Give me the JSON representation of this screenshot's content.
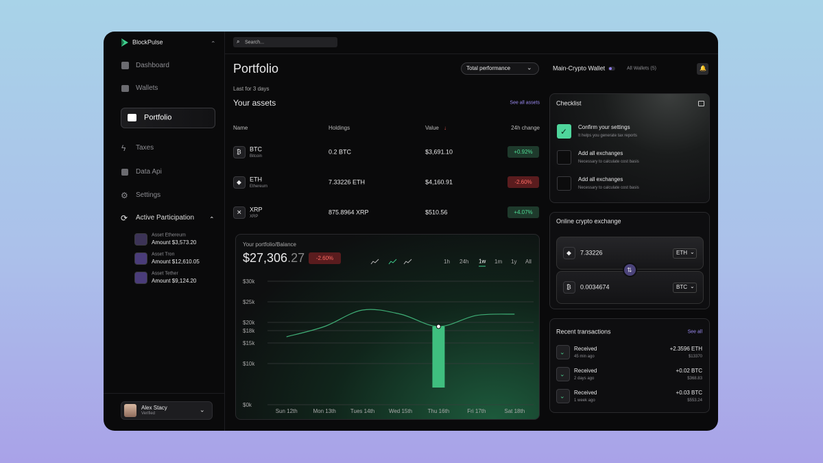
{
  "brand": "BlockPulse",
  "search": "Search...",
  "nav": [
    "Dashboard",
    "Wallets",
    "Portfolio",
    "Taxes",
    "Data Api",
    "Settings",
    "Active Participation"
  ],
  "participation": [
    {
      "name": "Asset Ethereum",
      "amount": "Amount $3,573.20"
    },
    {
      "name": "Asset Tron",
      "amount": "Amount $12,610.05"
    },
    {
      "name": "Asset Tether",
      "amount": "Amount $9,124.20"
    }
  ],
  "user": {
    "name": "Alex Stacy",
    "status": "Verified"
  },
  "header": {
    "title": "Portfolio",
    "dropdown": "Total performance",
    "wallet": "Main-Crypto Wallet",
    "all_wallets": "All Wallets (5)"
  },
  "assets": {
    "period": "Last for 3 days",
    "title": "Your assets",
    "link": "See all assets",
    "columns": [
      "Name",
      "Holdings",
      "Value",
      "24h change"
    ],
    "rows": [
      {
        "symbol": "BTC",
        "name": "Bitcoin",
        "holdings": "0.2 BTC",
        "value": "$3,691.10",
        "change": "+0.92%"
      },
      {
        "symbol": "ETH",
        "name": "Ethereum",
        "holdings": "7.33226 ETH",
        "value": "$4,160.91",
        "change": "-2.60%"
      },
      {
        "symbol": "XRP",
        "name": "XRP",
        "holdings": "875.8964 XRP",
        "value": "$510.56",
        "change": "+4.07%"
      }
    ]
  },
  "balance": {
    "label": "Your portfolio/Balance",
    "main": "$27,306",
    "cents": ".27",
    "change": "-2.60%",
    "ranges": [
      "1h",
      "24h",
      "1w",
      "1m",
      "1y",
      "All"
    ]
  },
  "chart_data": {
    "type": "line",
    "categories": [
      "Sun 12th",
      "Mon 13th",
      "Tues 14th",
      "Wed 15th",
      "Thu 16th",
      "Fri 17th",
      "Sat 18th"
    ],
    "values": [
      16.5,
      19,
      23,
      22,
      19,
      21.7,
      22
    ],
    "color": "#3fae76",
    "ylim": [
      0,
      30
    ],
    "yticks": [
      {
        "value": 0,
        "label": "$0k"
      },
      {
        "value": 10,
        "label": "$10k"
      },
      {
        "value": 15,
        "label": "$15k"
      },
      {
        "value": 18,
        "label": "$18k"
      },
      {
        "value": 20,
        "label": "$20k"
      },
      {
        "value": 25,
        "label": "$25k"
      },
      {
        "value": 30,
        "label": "$30k"
      }
    ],
    "grid": true
  },
  "checklist": {
    "title": "Checklist",
    "items": [
      {
        "title": "Confirm your settings",
        "note": "It helps you generate tax reports",
        "done": true
      },
      {
        "title": "Add all exchanges",
        "note": "Necessary to calculate cost basis",
        "done": false
      },
      {
        "title": "Add all exchanges",
        "note": "Necessary to calculate cost basis",
        "done": false
      }
    ]
  },
  "exchange": {
    "title": "Online crypto exchange",
    "from": {
      "amount": "7.33226",
      "currency": "ETH"
    },
    "to": {
      "amount": "0.0034674",
      "currency": "BTC"
    }
  },
  "transactions": {
    "title": "Recent transactions",
    "link": "See all",
    "items": [
      {
        "type": "Received",
        "time": "45 min ago",
        "amount": "+2.3596 ETH",
        "usd": "$13370"
      },
      {
        "type": "Received",
        "time": "2 days ago",
        "amount": "+0.02 BTC",
        "usd": "$368.83"
      },
      {
        "type": "Received",
        "time": "1 week ago",
        "amount": "+0.03 BTC",
        "usd": "$553.24"
      }
    ]
  }
}
